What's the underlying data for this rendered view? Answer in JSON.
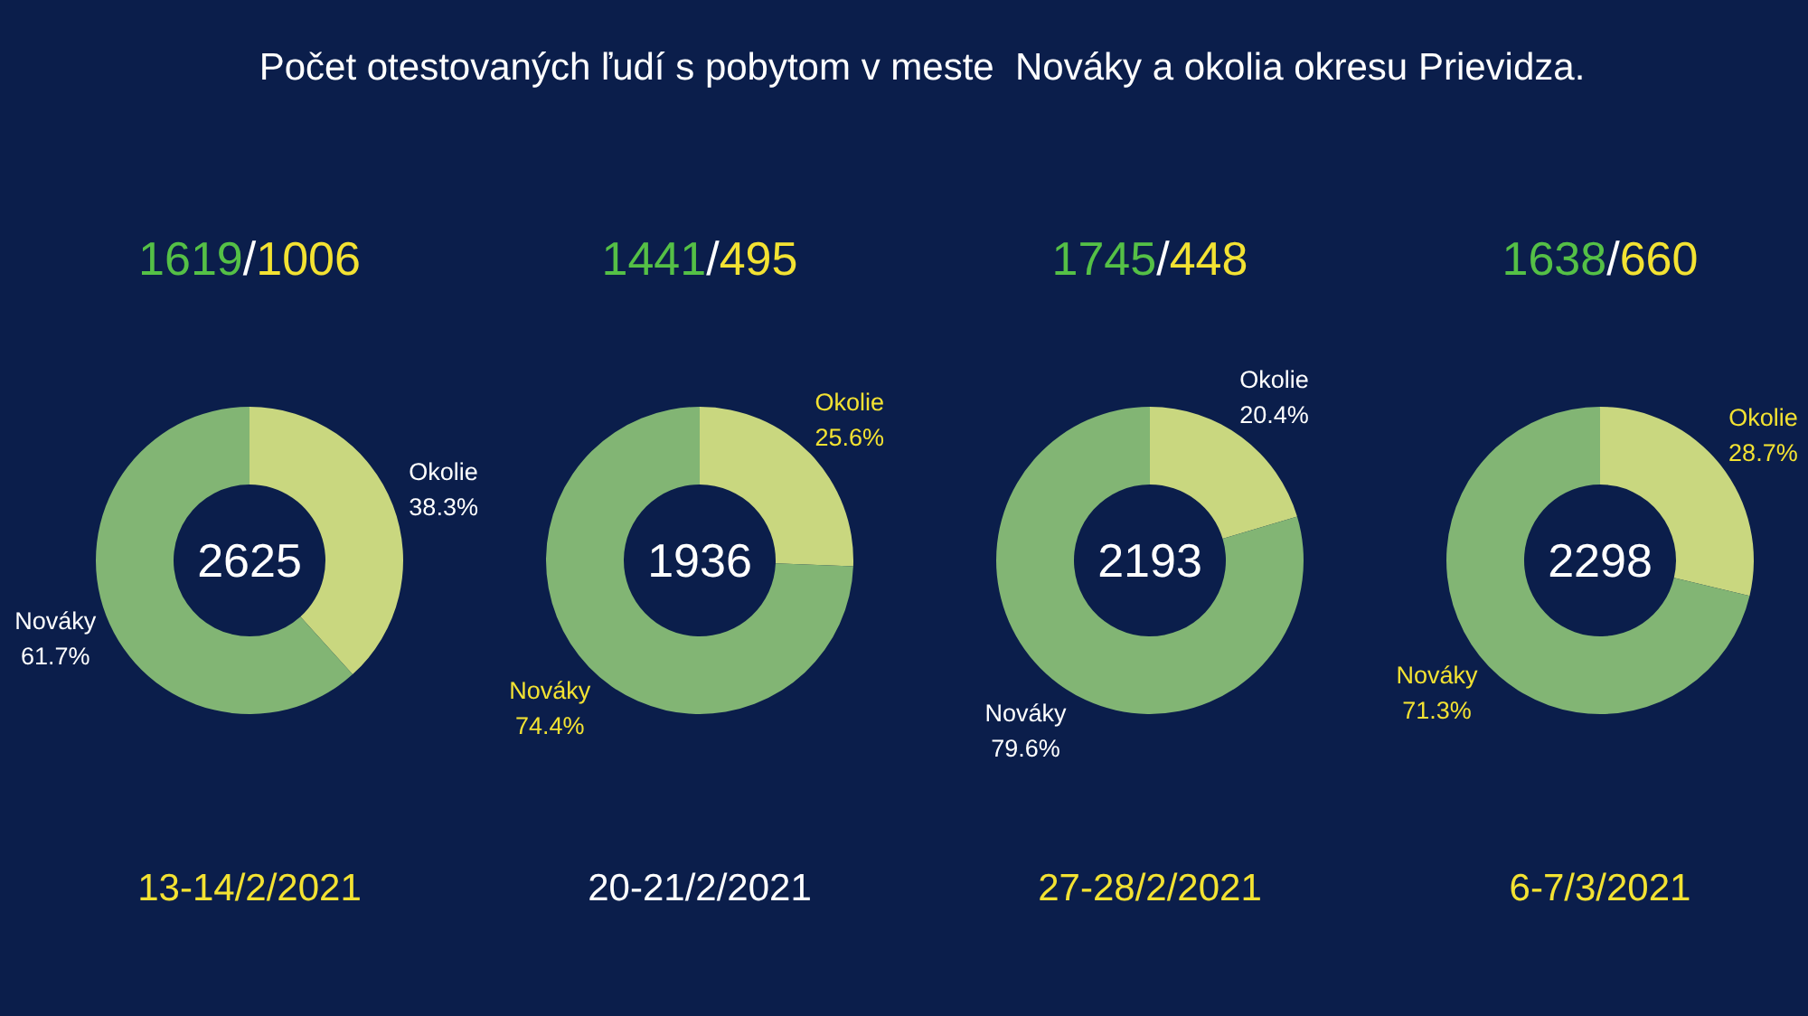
{
  "chart_data": [
    {
      "type": "other",
      "title": "Počet otestovaných ľudí s pobytom v meste  Nováky a okolia okresu Prievidza."
    },
    {
      "type": "donut",
      "title": "1619/1006",
      "categories": [
        "Okolie",
        "Nováky"
      ],
      "values": [
        38.3,
        61.7
      ],
      "value_labels": [
        "38.3%",
        "61.7%"
      ],
      "colors": [
        "#c9d77f",
        "#82b574"
      ],
      "annotations": [
        "2625",
        "13-14/2/2021"
      ]
    },
    {
      "type": "donut",
      "title": "1441/495",
      "categories": [
        "Okolie",
        "Nováky"
      ],
      "values": [
        25.6,
        74.4
      ],
      "value_labels": [
        "25.6%",
        "74.4%"
      ],
      "colors": [
        "#c9d77f",
        "#82b574"
      ],
      "annotations": [
        "1936",
        "20-21/2/2021"
      ]
    },
    {
      "type": "donut",
      "title": "1745/448",
      "categories": [
        "Okolie",
        "Nováky"
      ],
      "values": [
        20.4,
        79.6
      ],
      "value_labels": [
        "20.4%",
        "79.6%"
      ],
      "colors": [
        "#c9d77f",
        "#82b574"
      ],
      "annotations": [
        "2193",
        "27-28/2/2021"
      ]
    },
    {
      "type": "donut",
      "title": "1638/660",
      "categories": [
        "Okolie",
        "Nováky"
      ],
      "values": [
        28.7,
        71.3
      ],
      "value_labels": [
        "28.7%",
        "71.3%"
      ],
      "colors": [
        "#c9d77f",
        "#82b574"
      ],
      "annotations": [
        "2298",
        "6-7/3/2021"
      ]
    }
  ]
}
